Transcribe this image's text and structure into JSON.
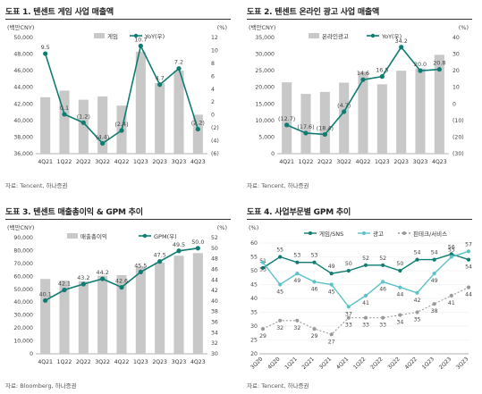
{
  "colors": {
    "bar": "#c8c8c8",
    "line": "#0f7c72",
    "line_light": "#5cc2c8",
    "line_gray": "#9a9a9a"
  },
  "chart_data": [
    {
      "title": "도표 1. 텐센트 게임 사업 매출액",
      "source": "자료: Tencent, 하나증권",
      "type": "bar",
      "categories": [
        "4Q21",
        "1Q22",
        "2Q22",
        "3Q22",
        "4Q22",
        "1Q23",
        "2Q23",
        "3Q23",
        "4Q23"
      ],
      "left_unit": "(백만CNY)",
      "right_unit": "(%)",
      "ylim_left": [
        36000,
        50000
      ],
      "ylim_right": [
        -6,
        12
      ],
      "series": [
        {
          "name": "게임",
          "type": "bar",
          "axis": "left",
          "values": [
            42800,
            43600,
            42500,
            42900,
            41800,
            48300,
            44500,
            46000,
            40700
          ]
        },
        {
          "name": "YoY(우)",
          "type": "line",
          "axis": "right",
          "values": [
            9.5,
            0.1,
            -1.2,
            -4.4,
            -2.4,
            10.7,
            4.7,
            7.2,
            -2.2
          ],
          "labels": [
            "9.5",
            "0.1",
            "(1.2)",
            "(4.4)",
            "(2.4)",
            "10.7",
            "4.7",
            "7.2",
            "(2.2)"
          ]
        }
      ],
      "left_ticks": [
        36000,
        38000,
        40000,
        42000,
        44000,
        46000,
        48000,
        50000
      ],
      "left_tick_labels": [
        "36,000",
        "38,000",
        "40,000",
        "42,000",
        "44,000",
        "46,000",
        "48,000",
        "50,000"
      ],
      "right_ticks": [
        -6,
        -4,
        -2,
        0,
        2,
        4,
        6,
        8,
        10,
        12
      ],
      "right_tick_labels": [
        "(6)",
        "(4)",
        "(2)",
        "0",
        "2",
        "4",
        "6",
        "8",
        "10",
        "12"
      ]
    },
    {
      "title": "도표 2. 텐센트 온라인 광고 사업 매출액",
      "source": "자료: Tencent, 하나증권",
      "type": "bar",
      "categories": [
        "4Q21",
        "1Q22",
        "2Q22",
        "3Q22",
        "4Q22",
        "1Q23",
        "2Q23",
        "3Q23",
        "4Q23"
      ],
      "left_unit": "(백만CNY)",
      "right_unit": "(%)",
      "ylim_left": [
        0,
        35000
      ],
      "ylim_right": [
        -30,
        40
      ],
      "series": [
        {
          "name": "온라인광고",
          "type": "bar",
          "axis": "left",
          "values": [
            21500,
            18000,
            18600,
            21400,
            24700,
            20900,
            25000,
            25700,
            29800
          ]
        },
        {
          "name": "YoY(우)",
          "type": "line",
          "axis": "right",
          "values": [
            -12.7,
            -17.6,
            -18.4,
            -4.7,
            14.6,
            16.5,
            34.2,
            20.0,
            20.8
          ],
          "labels": [
            "(12.7)",
            "(17.6)",
            "(18.4)",
            "(4.7)",
            "14.6",
            "16.5",
            "34.2",
            "20.0",
            "20.8"
          ]
        }
      ],
      "left_ticks": [
        0,
        5000,
        10000,
        15000,
        20000,
        25000,
        30000,
        35000
      ],
      "left_tick_labels": [
        "0",
        "5,000",
        "10,000",
        "15,000",
        "20,000",
        "25,000",
        "30,000",
        "35,000"
      ],
      "right_ticks": [
        -30,
        -20,
        -10,
        0,
        10,
        20,
        30,
        40
      ],
      "right_tick_labels": [
        "(30)",
        "(20)",
        "(10)",
        "0",
        "10",
        "20",
        "30",
        "40"
      ]
    },
    {
      "title": "도표 3. 텐센트 매출총이익 & GPM 추이",
      "source": "자료: Bloomberg, 하나증권",
      "type": "bar",
      "categories": [
        "4Q21",
        "1Q22",
        "2Q22",
        "3Q22",
        "4Q22",
        "1Q23",
        "2Q23",
        "3Q23",
        "4Q23"
      ],
      "left_unit": "(백만CNY)",
      "right_unit": "(%)",
      "ylim_left": [
        0,
        90000
      ],
      "ylim_right": [
        30,
        52
      ],
      "series": [
        {
          "name": "매출총이익",
          "type": "bar",
          "axis": "left",
          "values": [
            58000,
            56800,
            56300,
            60500,
            61000,
            67700,
            70800,
            76000,
            78000
          ]
        },
        {
          "name": "GPM(우)",
          "type": "line",
          "axis": "right",
          "values": [
            40.1,
            42.1,
            43.2,
            44.2,
            42.6,
            45.5,
            47.5,
            49.5,
            50.0
          ],
          "labels": [
            "40.1",
            "42.1",
            "43.2",
            "44.2",
            "42.6",
            "45.5",
            "47.5",
            "49.5",
            "50.0"
          ]
        }
      ],
      "left_ticks": [
        0,
        10000,
        20000,
        30000,
        40000,
        50000,
        60000,
        70000,
        80000,
        90000
      ],
      "left_tick_labels": [
        "0",
        "10,000",
        "20,000",
        "30,000",
        "40,000",
        "50,000",
        "60,000",
        "70,000",
        "80,000",
        "90,000"
      ],
      "right_ticks": [
        30,
        32,
        34,
        36,
        38,
        40,
        42,
        44,
        46,
        48,
        50,
        52
      ],
      "right_tick_labels": [
        "30",
        "32",
        "34",
        "36",
        "38",
        "40",
        "42",
        "44",
        "46",
        "48",
        "50",
        "52"
      ]
    },
    {
      "title": "도표 4. 사업부문별 GPM 추이",
      "source": "자료: Tencent, 하나증권",
      "type": "line",
      "categories": [
        "3Q20",
        "4Q20",
        "1Q21",
        "2Q21",
        "3Q21",
        "4Q21",
        "1Q22",
        "2Q22",
        "3Q22",
        "4Q22",
        "1Q23",
        "2Q23",
        "3Q23"
      ],
      "left_unit": "(%)",
      "ylim_left": [
        20,
        60
      ],
      "series": [
        {
          "name": "게임/SNS",
          "values": [
            51,
            55,
            53,
            53,
            49,
            50,
            52,
            52,
            50,
            54,
            54,
            56,
            54
          ]
        },
        {
          "name": "광고",
          "values": [
            53,
            45,
            49,
            46,
            45,
            37,
            41,
            46,
            44,
            42,
            49,
            55,
            57
          ]
        },
        {
          "name": "핀테크/서비스",
          "values": [
            29,
            32,
            32,
            29,
            27,
            33,
            33,
            33,
            34,
            35,
            38,
            41,
            44
          ]
        }
      ],
      "left_ticks": [
        20,
        25,
        30,
        35,
        40,
        45,
        50,
        55,
        60
      ],
      "left_tick_labels": [
        "20",
        "25",
        "30",
        "35",
        "40",
        "45",
        "50",
        "55",
        "60"
      ]
    }
  ]
}
